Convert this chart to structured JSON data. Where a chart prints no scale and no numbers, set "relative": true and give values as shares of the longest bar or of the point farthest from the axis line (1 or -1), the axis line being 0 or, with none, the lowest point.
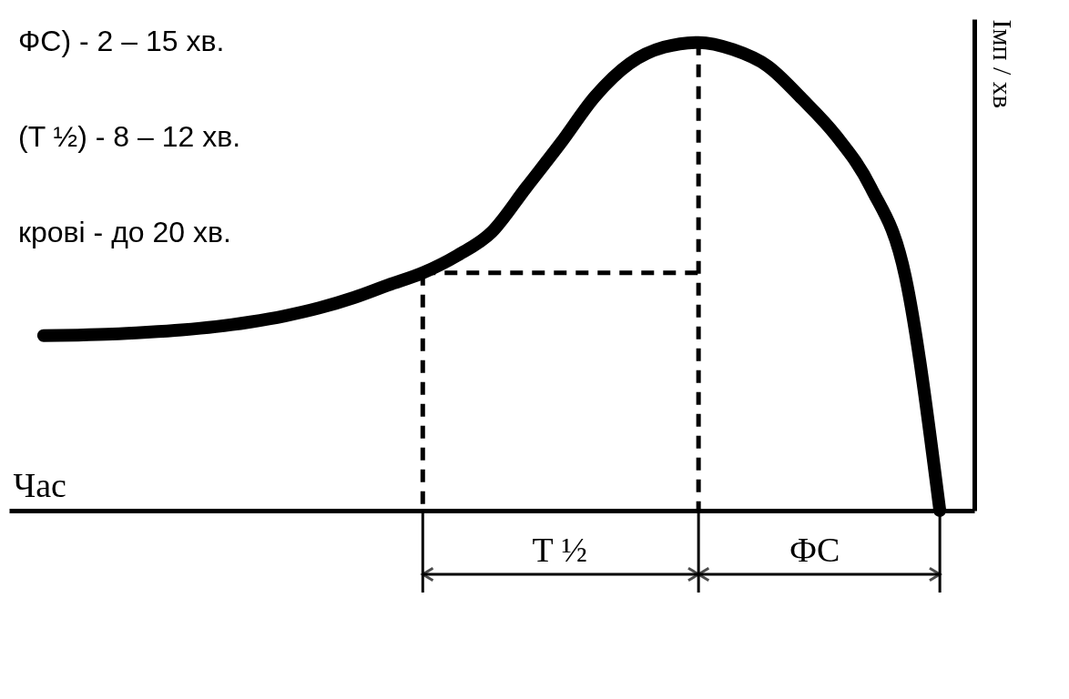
{
  "chart_data": {
    "type": "line",
    "relative": true,
    "xlabel": "Час",
    "ylabel": "Імп / хв",
    "categories": [
      null,
      null,
      null,
      null,
      null,
      null,
      null,
      null,
      null,
      null,
      null,
      null,
      null,
      null,
      null,
      null,
      null,
      null,
      null,
      null,
      null,
      null,
      null,
      null,
      null,
      null,
      null
    ],
    "annotations": [
      "ФС) - 2 – 15 хв.",
      "(T ½) - 8 – 12 хв.",
      "крові - до 20 хв.",
      "T ½",
      "ФС"
    ],
    "series": [
      {
        "color": "#000000",
        "values": [
          0.374,
          0.375,
          0.377,
          0.381,
          0.386,
          0.393,
          0.403,
          0.416,
          0.433,
          0.455,
          0.482,
          0.508,
          0.545,
          0.595,
          0.69,
          0.785,
          0.885,
          0.955,
          0.99,
          1.0,
          0.985,
          0.95,
          0.88,
          0.8,
          0.69,
          0.5,
          0
        ]
      },
      {
        "color": "#000000",
        "line_style": "dashed",
        "values": [
          null,
          null,
          null,
          null,
          null,
          null,
          null,
          null,
          null,
          null,
          null,
          0.508,
          0.508,
          0.508,
          0.508,
          0.508,
          0.508,
          0.508,
          0.508,
          0.508,
          null,
          null,
          null,
          null,
          null,
          null,
          null
        ]
      }
    ]
  }
}
